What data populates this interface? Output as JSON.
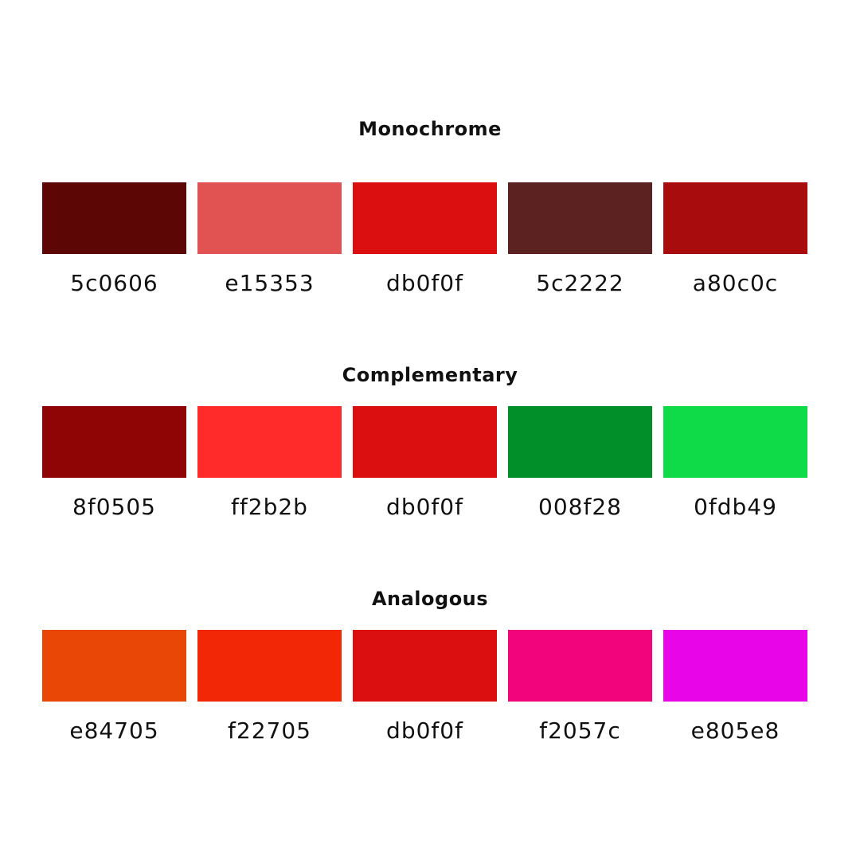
{
  "palettes": [
    {
      "title": "Monochrome",
      "colors": [
        {
          "hex": "#5c0606",
          "label": "5c0606"
        },
        {
          "hex": "#e15353",
          "label": "e15353"
        },
        {
          "hex": "#db0f0f",
          "label": "db0f0f"
        },
        {
          "hex": "#5c2222",
          "label": "5c2222"
        },
        {
          "hex": "#a80c0c",
          "label": "a80c0c"
        }
      ]
    },
    {
      "title": "Complementary",
      "colors": [
        {
          "hex": "#8f0505",
          "label": "8f0505"
        },
        {
          "hex": "#ff2b2b",
          "label": "ff2b2b"
        },
        {
          "hex": "#db0f0f",
          "label": "db0f0f"
        },
        {
          "hex": "#008f28",
          "label": "008f28"
        },
        {
          "hex": "#0fdb49",
          "label": "0fdb49"
        }
      ]
    },
    {
      "title": "Analogous",
      "colors": [
        {
          "hex": "#e84705",
          "label": "e84705"
        },
        {
          "hex": "#f22705",
          "label": "f22705"
        },
        {
          "hex": "#db0f0f",
          "label": "db0f0f"
        },
        {
          "hex": "#f2057c",
          "label": "f2057c"
        },
        {
          "hex": "#e805e8",
          "label": "e805e8"
        }
      ]
    }
  ]
}
